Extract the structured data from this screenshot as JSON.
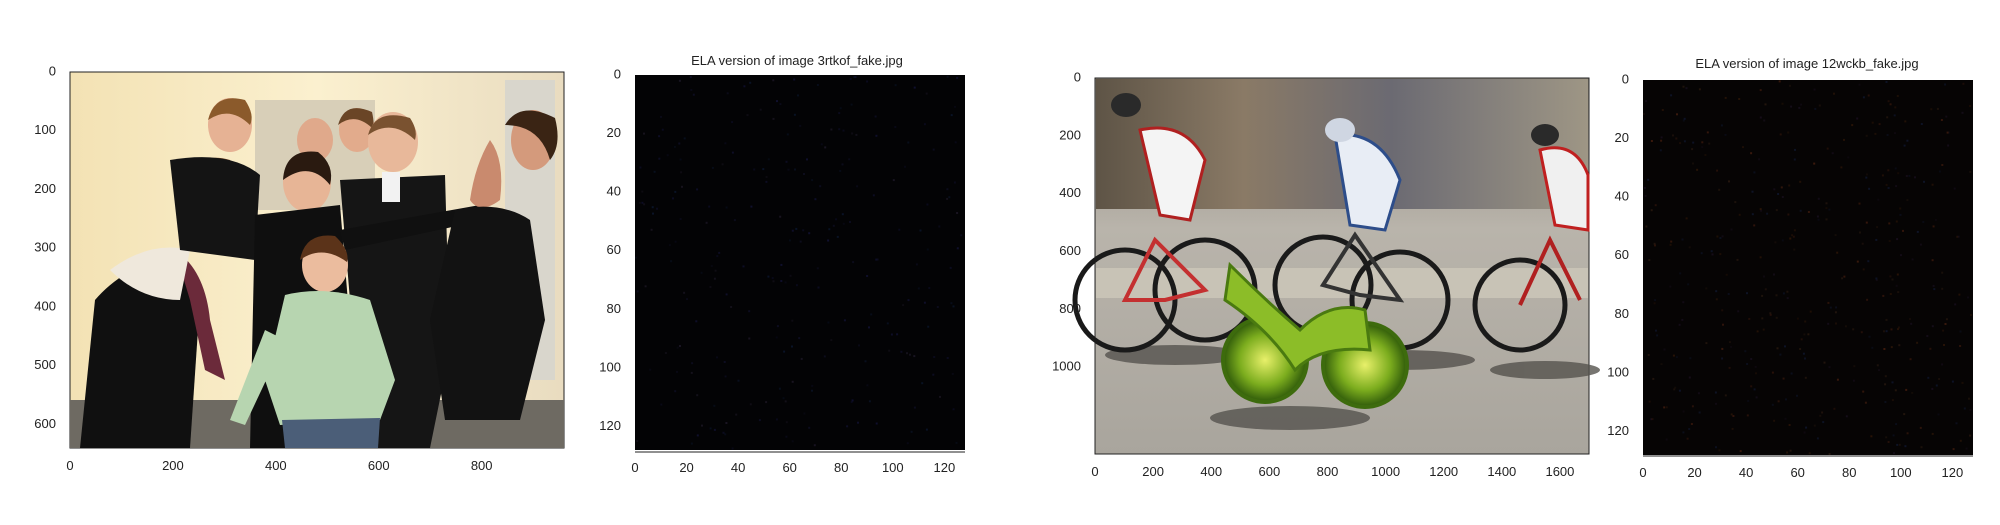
{
  "chart_data": [
    {
      "type": "image",
      "title": "",
      "xlim": [
        0,
        960
      ],
      "ylim": [
        640,
        0
      ],
      "xticks": [
        0,
        200,
        400,
        600,
        800
      ],
      "yticks": [
        0,
        100,
        200,
        300,
        400,
        500,
        600
      ],
      "image_description": "group photo"
    },
    {
      "type": "heatmap",
      "title": "ELA version of image 3rtkof_fake.jpg",
      "xlim": [
        0,
        128
      ],
      "ylim": [
        128,
        0
      ],
      "xticks": [
        0,
        20,
        40,
        60,
        80,
        100,
        120
      ],
      "yticks": [
        0,
        20,
        40,
        60,
        80,
        100,
        120
      ],
      "background": "#030305"
    },
    {
      "type": "image",
      "title": "",
      "xlim": [
        0,
        1700
      ],
      "ylim": [
        1300,
        0
      ],
      "xticks": [
        0,
        200,
        400,
        600,
        800,
        1000,
        1200,
        1400,
        1600
      ],
      "yticks": [
        0,
        200,
        400,
        600,
        800,
        1000
      ],
      "image_description": "cyclists photo"
    },
    {
      "type": "heatmap",
      "title": "ELA version of image 12wckb_fake.jpg",
      "xlim": [
        0,
        128
      ],
      "ylim": [
        128,
        0
      ],
      "xticks": [
        0,
        20,
        40,
        60,
        80,
        100,
        120
      ],
      "yticks": [
        0,
        20,
        40,
        60,
        80,
        100,
        120
      ],
      "background": "#060404"
    }
  ]
}
